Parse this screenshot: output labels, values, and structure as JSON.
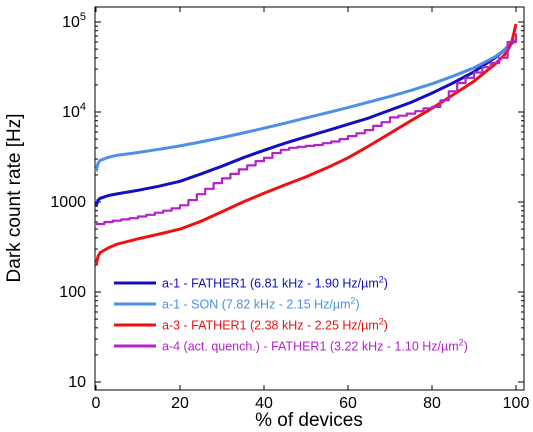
{
  "chart_data": {
    "type": "line",
    "xlabel": "% of devices",
    "ylabel": "Dark count rate [Hz]",
    "xlim": [
      0,
      100
    ],
    "ylim": [
      10,
      100000
    ],
    "yscale": "log",
    "grid": false,
    "legend_position": "bottom-right",
    "x_ticks": [
      0,
      20,
      40,
      60,
      80,
      100
    ],
    "x_tick_labels": [
      "0",
      "20",
      "40",
      "60",
      "80",
      "100"
    ],
    "y_ticks": [
      10,
      100,
      1000,
      10000,
      100000
    ],
    "y_tick_labels": [
      {
        "base": "10",
        "sup": ""
      },
      {
        "base": "100",
        "sup": ""
      },
      {
        "base": "1000",
        "sup": ""
      },
      {
        "base": "10",
        "sup": "4"
      },
      {
        "base": "10",
        "sup": "5"
      }
    ],
    "series": [
      {
        "name": "a-1 - FATHER1 (6.81 kHz - 1.90 Hz/µm²)",
        "legend_prefix": "a-1 - FATHER1 (6.81 kHz - 1.90 Hz/",
        "legend_unit": "µm",
        "legend_sup": "2",
        "legend_suffix": ")",
        "color": "#1010c0",
        "step": false,
        "x": [
          0,
          0.5,
          1,
          3,
          5,
          10,
          15,
          20,
          25,
          30,
          35,
          40,
          45,
          50,
          55,
          60,
          65,
          70,
          75,
          80,
          85,
          90,
          95,
          97,
          98,
          99,
          100
        ],
        "y": [
          900,
          1050,
          1100,
          1180,
          1230,
          1350,
          1500,
          1700,
          2050,
          2500,
          3100,
          3750,
          4500,
          5300,
          6200,
          7300,
          8600,
          10500,
          12800,
          16200,
          21000,
          28000,
          40000,
          48000,
          53000,
          58000,
          62000
        ]
      },
      {
        "name": "a-1 - SON (7.82 kHz - 2.15 Hz/µm²)",
        "legend_prefix": "a-1 - SON (7.82 kHz - 2.15 Hz/",
        "legend_unit": "µm",
        "legend_sup": "2",
        "legend_suffix": ")",
        "color": "#4d8fe6",
        "step": false,
        "x": [
          0,
          0.5,
          1,
          3,
          5,
          10,
          15,
          20,
          25,
          30,
          35,
          40,
          45,
          50,
          55,
          60,
          65,
          70,
          75,
          80,
          85,
          90,
          95,
          97,
          98,
          99,
          100
        ],
        "y": [
          2200,
          2700,
          2900,
          3150,
          3300,
          3550,
          3850,
          4200,
          4650,
          5200,
          5850,
          6600,
          7500,
          8600,
          9800,
          11200,
          12900,
          14900,
          17400,
          20600,
          25000,
          31000,
          41000,
          48000,
          53000,
          58000,
          63000
        ]
      },
      {
        "name": "a-3 - FATHER1 (2.38 kHz - 2.25 Hz/µm²)",
        "legend_prefix": "a-3 - FATHER1 (2.38 kHz - 2.25 Hz/",
        "legend_unit": "µm",
        "legend_sup": "2",
        "legend_suffix": ")",
        "color": "#ee1111",
        "step": false,
        "x": [
          0,
          0.5,
          1,
          3,
          5,
          10,
          15,
          20,
          25,
          30,
          35,
          40,
          45,
          50,
          55,
          60,
          65,
          70,
          75,
          80,
          85,
          90,
          95,
          97,
          98,
          99,
          100
        ],
        "y": [
          200,
          250,
          275,
          310,
          340,
          390,
          440,
          500,
          610,
          780,
          1000,
          1250,
          1550,
          1900,
          2400,
          3100,
          4200,
          5800,
          8000,
          11000,
          15500,
          22000,
          34000,
          42000,
          48000,
          60000,
          95000
        ]
      },
      {
        "name": "a-4 (act. quench.) - FATHER1 (3.22 kHz - 1.10 Hz/µm²)",
        "legend_prefix": "a-4 (act. quench.) - FATHER1 (3.22 kHz - 1.10 Hz/",
        "legend_unit": "µm",
        "legend_sup": "2",
        "legend_suffix": ")",
        "color": "#b422c9",
        "step": true,
        "x": [
          0,
          2,
          4,
          6,
          8,
          10,
          12,
          14,
          16,
          18,
          20,
          22,
          24,
          26,
          28,
          30,
          32,
          34,
          36,
          38,
          40,
          42,
          44,
          46,
          48,
          50,
          52,
          54,
          56,
          58,
          60,
          62,
          64,
          66,
          68,
          70,
          72,
          74,
          76,
          78,
          80,
          82,
          84,
          86,
          88,
          90,
          92,
          94,
          96,
          98,
          100
        ],
        "y": [
          570,
          600,
          620,
          640,
          660,
          690,
          720,
          760,
          800,
          850,
          920,
          1050,
          1220,
          1400,
          1620,
          1830,
          2050,
          2300,
          2550,
          2850,
          3100,
          3500,
          3800,
          4000,
          4100,
          4200,
          4300,
          4500,
          4700,
          5000,
          5400,
          5800,
          6300,
          7000,
          7700,
          8700,
          9100,
          9600,
          10200,
          11000,
          11400,
          13500,
          17000,
          21000,
          24000,
          27500,
          31500,
          35000,
          40000,
          60000,
          75000
        ]
      }
    ]
  }
}
